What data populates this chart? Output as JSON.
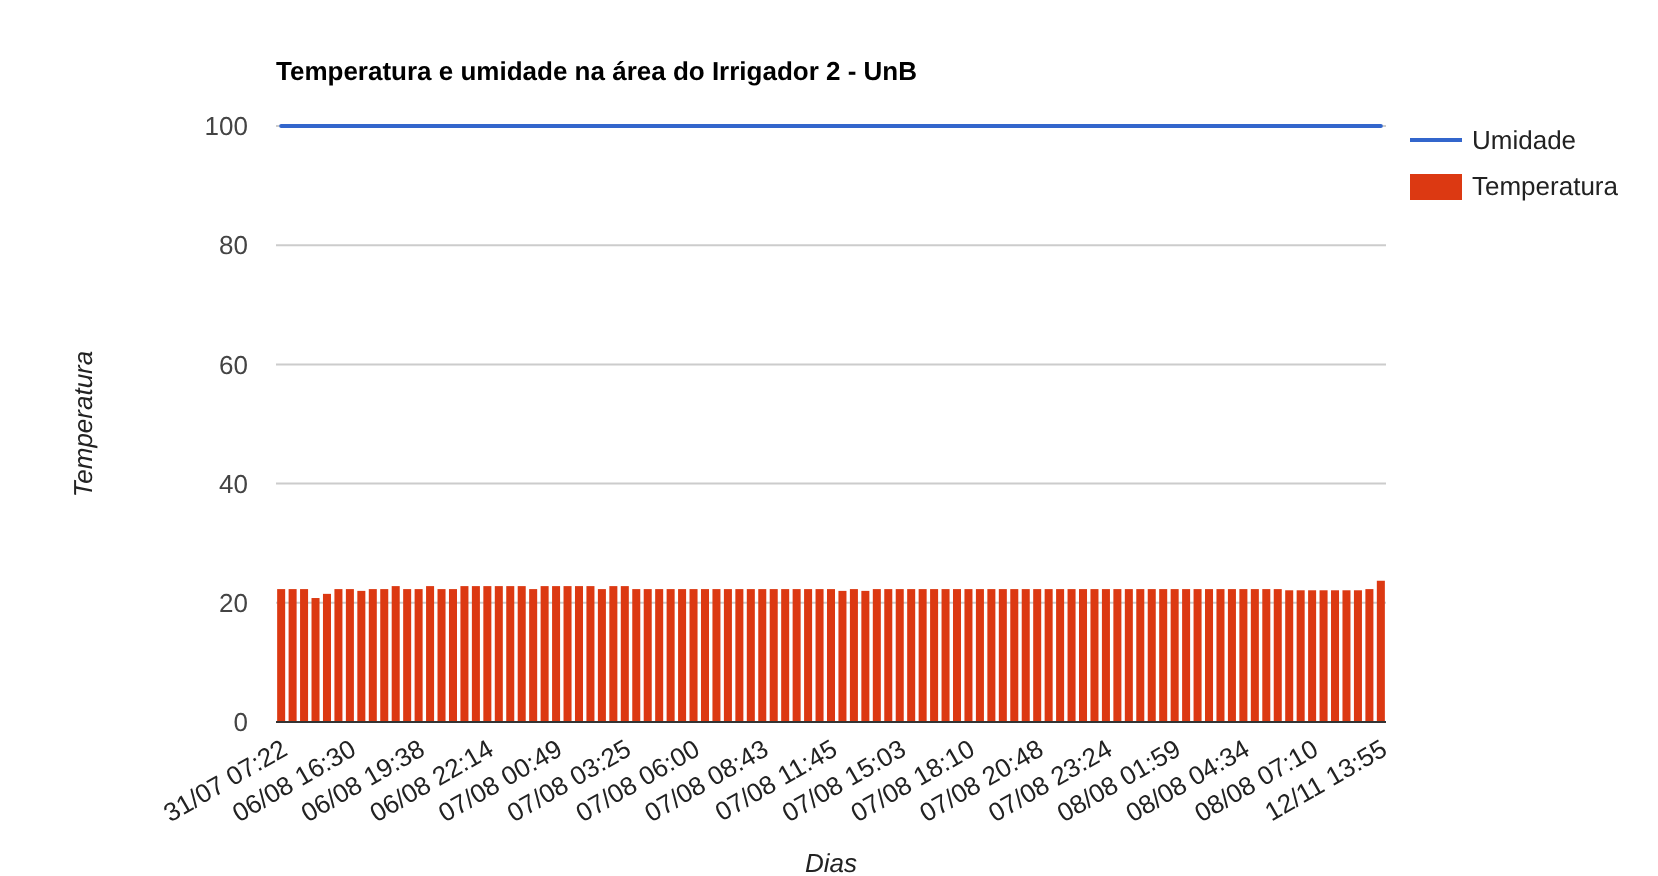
{
  "chart_data": {
    "type": "bar",
    "title": "Temperatura e umidade na área do Irrigador 2 - UnB",
    "xlabel": "Dias",
    "ylabel": "Temperatura",
    "categories": [
      "31/07 07:22",
      null,
      null,
      null,
      null,
      null,
      "06/08 16:30",
      null,
      null,
      null,
      null,
      null,
      "06/08 19:38",
      null,
      null,
      null,
      null,
      null,
      "06/08 22:14",
      null,
      null,
      null,
      null,
      null,
      "07/08 00:49",
      null,
      null,
      null,
      null,
      null,
      "07/08 03:25",
      null,
      null,
      null,
      null,
      null,
      "07/08 06:00",
      null,
      null,
      null,
      null,
      null,
      "07/08 08:43",
      null,
      null,
      null,
      null,
      null,
      "07/08 11:45",
      null,
      null,
      null,
      null,
      null,
      "07/08 15:03",
      null,
      null,
      null,
      null,
      null,
      "07/08 18:10",
      null,
      null,
      null,
      null,
      null,
      "07/08 20:48",
      null,
      null,
      null,
      null,
      null,
      "07/08 23:24",
      null,
      null,
      null,
      null,
      null,
      "08/08 01:59",
      null,
      null,
      null,
      null,
      null,
      "08/08 04:34",
      null,
      null,
      null,
      null,
      null,
      "08/08 07:10",
      null,
      null,
      null,
      null,
      null,
      "12/11 13:55"
    ],
    "series": [
      {
        "name": "Umidade",
        "type": "line",
        "color": "#3366cc",
        "values": [
          100,
          100,
          100,
          100,
          100,
          100,
          100,
          100,
          100,
          100,
          100,
          100,
          100,
          100,
          100,
          100,
          100,
          100,
          100,
          100,
          100,
          100,
          100,
          100,
          100,
          100,
          100,
          100,
          100,
          100,
          100,
          100,
          100,
          100,
          100,
          100,
          100,
          100,
          100,
          100,
          100,
          100,
          100,
          100,
          100,
          100,
          100,
          100,
          100,
          100,
          100,
          100,
          100,
          100,
          100,
          100,
          100,
          100,
          100,
          100,
          100,
          100,
          100,
          100,
          100,
          100,
          100,
          100,
          100,
          100,
          100,
          100,
          100,
          100,
          100,
          100,
          100,
          100,
          100,
          100,
          100,
          100,
          100,
          100,
          100,
          100,
          100,
          100,
          100,
          100,
          100,
          100,
          100,
          100,
          100,
          100,
          100
        ]
      },
      {
        "name": "Temperatura",
        "color": "#dc3912",
        "values": [
          22.3,
          22.3,
          22.3,
          20.8,
          21.5,
          22.3,
          22.3,
          22.0,
          22.3,
          22.3,
          22.8,
          22.3,
          22.3,
          22.8,
          22.3,
          22.3,
          22.8,
          22.8,
          22.8,
          22.8,
          22.8,
          22.8,
          22.3,
          22.8,
          22.8,
          22.8,
          22.8,
          22.8,
          22.3,
          22.8,
          22.8,
          22.3,
          22.3,
          22.3,
          22.3,
          22.3,
          22.3,
          22.3,
          22.3,
          22.3,
          22.3,
          22.3,
          22.3,
          22.3,
          22.3,
          22.3,
          22.3,
          22.3,
          22.3,
          22.0,
          22.3,
          22.0,
          22.3,
          22.3,
          22.3,
          22.3,
          22.3,
          22.3,
          22.3,
          22.3,
          22.3,
          22.3,
          22.3,
          22.3,
          22.3,
          22.3,
          22.3,
          22.3,
          22.3,
          22.3,
          22.3,
          22.3,
          22.3,
          22.3,
          22.3,
          22.3,
          22.3,
          22.3,
          22.3,
          22.3,
          22.3,
          22.3,
          22.3,
          22.3,
          22.3,
          22.3,
          22.3,
          22.3,
          22.1,
          22.1,
          22.1,
          22.1,
          22.1,
          22.1,
          22.1,
          22.3,
          23.7
        ]
      }
    ],
    "ylim": [
      0,
      100
    ],
    "yticks": [
      0,
      20,
      40,
      60,
      80,
      100
    ],
    "grid": "y",
    "legend": "right"
  }
}
